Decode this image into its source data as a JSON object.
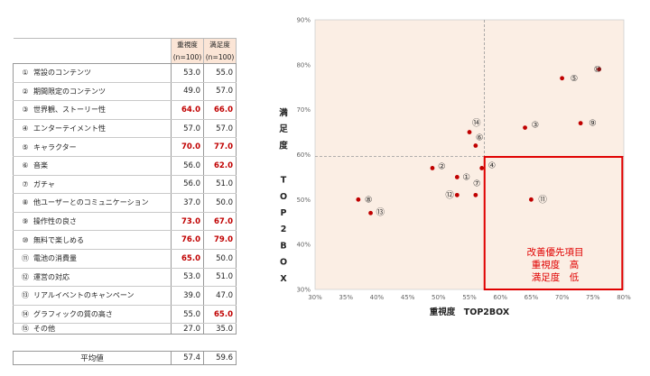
{
  "table": {
    "col1_label": "重視度",
    "col1_sub": "(n=100)",
    "col2_label": "満足度",
    "col2_sub": "(n=100)",
    "rows": [
      {
        "num": "①",
        "name": "常設のコンテンツ",
        "importance": "53.0",
        "satisfaction": "55.0"
      },
      {
        "num": "②",
        "name": "期間限定のコンテンツ",
        "importance": "49.0",
        "satisfaction": "57.0"
      },
      {
        "num": "③",
        "name": "世界観、ストーリー性",
        "importance": "64.0",
        "satisfaction": "66.0"
      },
      {
        "num": "④",
        "name": "エンターテイメント性",
        "importance": "57.0",
        "satisfaction": "57.0"
      },
      {
        "num": "⑤",
        "name": "キャラクター",
        "importance": "70.0",
        "satisfaction": "77.0"
      },
      {
        "num": "⑥",
        "name": "音楽",
        "importance": "56.0",
        "satisfaction": "62.0"
      },
      {
        "num": "⑦",
        "name": "ガチャ",
        "importance": "56.0",
        "satisfaction": "51.0"
      },
      {
        "num": "⑧",
        "name": "他ユーザーとのコミュニケーション",
        "importance": "37.0",
        "satisfaction": "50.0"
      },
      {
        "num": "⑨",
        "name": "操作性の良さ",
        "importance": "73.0",
        "satisfaction": "67.0"
      },
      {
        "num": "⑩",
        "name": "無料で楽しめる",
        "importance": "76.0",
        "satisfaction": "79.0"
      },
      {
        "num": "⑪",
        "name": "電池の消費量",
        "importance": "65.0",
        "satisfaction": "50.0"
      },
      {
        "num": "⑫",
        "name": "運営の対応",
        "importance": "53.0",
        "satisfaction": "51.0"
      },
      {
        "num": "⑬",
        "name": "リアルイベントのキャンペーン",
        "importance": "39.0",
        "satisfaction": "47.0"
      },
      {
        "num": "⑭",
        "name": "グラフィックの質の高さ",
        "importance": "55.0",
        "satisfaction": "65.0"
      },
      {
        "num": "⑮",
        "name": "その他",
        "importance": "27.0",
        "satisfaction": "35.0"
      }
    ],
    "highlight": [
      [
        false,
        false
      ],
      [
        false,
        false
      ],
      [
        true,
        true
      ],
      [
        false,
        false
      ],
      [
        true,
        true
      ],
      [
        false,
        true
      ],
      [
        false,
        false
      ],
      [
        false,
        false
      ],
      [
        true,
        true
      ],
      [
        true,
        true
      ],
      [
        true,
        false
      ],
      [
        false,
        false
      ],
      [
        false,
        false
      ],
      [
        false,
        true
      ],
      [
        false,
        false
      ]
    ],
    "highlight_color": "#c00000",
    "average": {
      "label": "平均値",
      "importance": "57.4",
      "satisfaction": "59.6"
    }
  },
  "chart_data": {
    "type": "scatter",
    "xlabel": "重視度　TOP2BOX",
    "ylabel": "満足度　TOP2BOX",
    "xlim": [
      0.3,
      0.8
    ],
    "ylim": [
      0.3,
      0.9
    ],
    "x_ticks": [
      "30%",
      "35%",
      "40%",
      "45%",
      "50%",
      "55%",
      "60%",
      "65%",
      "70%",
      "75%",
      "80%"
    ],
    "y_ticks": [
      "30%",
      "40%",
      "50%",
      "60%",
      "70%",
      "80%",
      "90%"
    ],
    "grid": false,
    "background_color": "#fbeee4",
    "marker_color": "#c00000",
    "points": [
      {
        "label": "①",
        "x": 0.53,
        "y": 0.55
      },
      {
        "label": "②",
        "x": 0.49,
        "y": 0.57
      },
      {
        "label": "③",
        "x": 0.64,
        "y": 0.66
      },
      {
        "label": "④",
        "x": 0.57,
        "y": 0.57
      },
      {
        "label": "⑤",
        "x": 0.7,
        "y": 0.77
      },
      {
        "label": "⑥",
        "x": 0.56,
        "y": 0.62
      },
      {
        "label": "⑦",
        "x": 0.56,
        "y": 0.51
      },
      {
        "label": "⑧",
        "x": 0.37,
        "y": 0.5
      },
      {
        "label": "⑨",
        "x": 0.73,
        "y": 0.67
      },
      {
        "label": "⑩",
        "x": 0.76,
        "y": 0.79
      },
      {
        "label": "⑪",
        "x": 0.65,
        "y": 0.5
      },
      {
        "label": "⑫",
        "x": 0.53,
        "y": 0.51
      },
      {
        "label": "⑬",
        "x": 0.39,
        "y": 0.47
      },
      {
        "label": "⑭",
        "x": 0.55,
        "y": 0.65
      }
    ],
    "reference_lines": {
      "x": 0.574,
      "y": 0.596
    },
    "annotation": {
      "lines": [
        "改善優先項目",
        "重視度　高",
        "満足度　低"
      ],
      "color": "#e00000",
      "box_x": [
        0.5745,
        0.7975
      ],
      "box_y": [
        0.3,
        0.595
      ]
    }
  }
}
